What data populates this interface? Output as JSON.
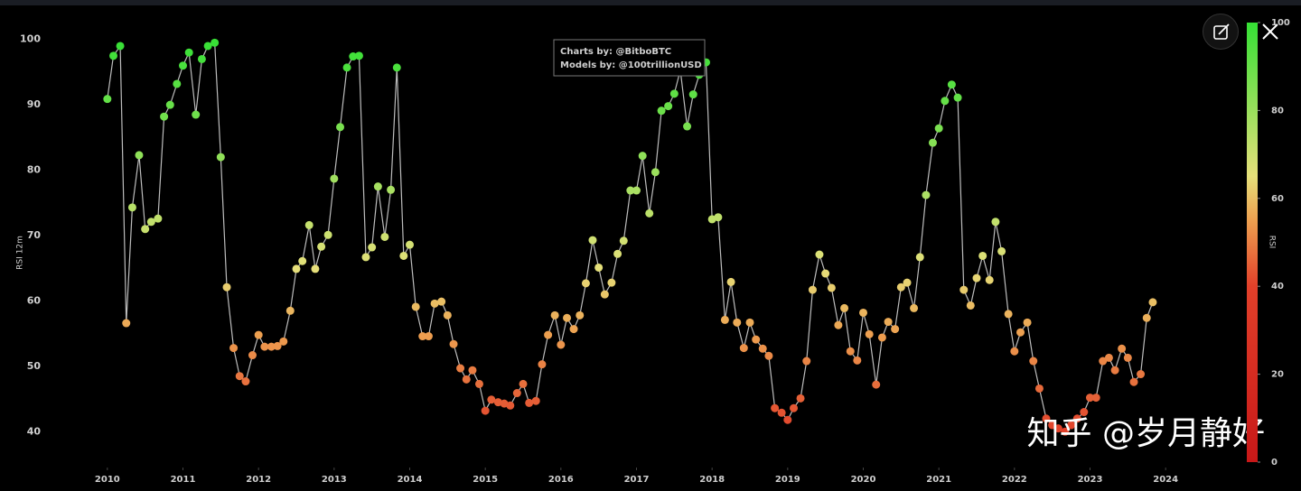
{
  "chart_data": {
    "type": "line",
    "y_label": "RSI 12m",
    "annotation": [
      "Charts by: @BitboBTC",
      "Models by: @100trillionUSD"
    ],
    "line_color": "#bdbdbd",
    "x": [
      2010,
      2010.08,
      2010.17,
      2010.25,
      2010.33,
      2010.42,
      2010.5,
      2010.58,
      2010.67,
      2010.75,
      2010.83,
      2010.92,
      2011,
      2011.08,
      2011.17,
      2011.25,
      2011.33,
      2011.42,
      2011.5,
      2011.58,
      2011.67,
      2011.75,
      2011.83,
      2011.92,
      2012,
      2012.08,
      2012.17,
      2012.25,
      2012.33,
      2012.42,
      2012.5,
      2012.58,
      2012.67,
      2012.75,
      2012.83,
      2012.92,
      2013,
      2013.08,
      2013.17,
      2013.25,
      2013.33,
      2013.42,
      2013.5,
      2013.58,
      2013.67,
      2013.75,
      2013.83,
      2013.92,
      2014,
      2014.08,
      2014.17,
      2014.25,
      2014.33,
      2014.42,
      2014.5,
      2014.58,
      2014.67,
      2014.75,
      2014.83,
      2014.92,
      2015,
      2015.08,
      2015.17,
      2015.25,
      2015.33,
      2015.42,
      2015.5,
      2015.58,
      2015.67,
      2015.75,
      2015.83,
      2015.92,
      2016,
      2016.08,
      2016.17,
      2016.25,
      2016.33,
      2016.42,
      2016.5,
      2016.58,
      2016.67,
      2016.75,
      2016.83,
      2016.92,
      2017,
      2017.08,
      2017.17,
      2017.25,
      2017.33,
      2017.42,
      2017.5,
      2017.58,
      2017.67,
      2017.75,
      2017.83,
      2017.92,
      2018,
      2018.08,
      2018.17,
      2018.25,
      2018.33,
      2018.42,
      2018.5,
      2018.58,
      2018.67,
      2018.75,
      2018.83,
      2018.92,
      2019,
      2019.08,
      2019.17,
      2019.25,
      2019.33,
      2019.42,
      2019.5,
      2019.58,
      2019.67,
      2019.75,
      2019.83,
      2019.92,
      2020,
      2020.08,
      2020.17,
      2020.25,
      2020.33,
      2020.42,
      2020.5,
      2020.58,
      2020.67,
      2020.75,
      2020.83,
      2020.92,
      2021,
      2021.08,
      2021.17,
      2021.25,
      2021.33,
      2021.42,
      2021.5,
      2021.58,
      2021.67,
      2021.75,
      2021.83,
      2021.92,
      2022,
      2022.08,
      2022.17,
      2022.25,
      2022.33,
      2022.42,
      2022.5,
      2022.58,
      2022.67,
      2022.75,
      2022.83,
      2022.92,
      2023,
      2023.08,
      2023.17,
      2023.25,
      2023.33,
      2023.42,
      2023.5,
      2023.58,
      2023.67,
      2023.75,
      2023.83
    ],
    "values": [
      90.9,
      97.5,
      99,
      56.6,
      74.3,
      82.3,
      71,
      72.1,
      72.6,
      88.2,
      90,
      93.2,
      96,
      98,
      88.5,
      97,
      99,
      99.5,
      82,
      62.1,
      52.8,
      48.5,
      47.7,
      51.7,
      54.8,
      53,
      53,
      53.1,
      53.8,
      58.5,
      64.9,
      66.1,
      71.6,
      64.9,
      68.3,
      70.1,
      78.7,
      86.6,
      95.7,
      97.4,
      97.5,
      66.7,
      68.2,
      77.5,
      69.8,
      77,
      95.7,
      66.9,
      68.6,
      59.1,
      54.6,
      54.6,
      59.6,
      59.9,
      57.8,
      53.4,
      49.7,
      48,
      49.4,
      47.3,
      43.2,
      44.9,
      44.5,
      44.3,
      44,
      45.9,
      47.3,
      44.4,
      44.7,
      50.3,
      54.8,
      57.8,
      53.3,
      57.4,
      55.7,
      57.8,
      62.7,
      69.3,
      65.1,
      61,
      62.8,
      67.2,
      69.2,
      76.9,
      76.9,
      82.2,
      73.4,
      79.7,
      89.1,
      89.8,
      91.7,
      95.3,
      86.7,
      91.6,
      94.6,
      96.5,
      72.5,
      72.8,
      57.1,
      62.9,
      56.7,
      52.8,
      56.7,
      54.1,
      52.7,
      51.6,
      43.6,
      42.9,
      41.8,
      43.6,
      45.1,
      50.8,
      61.7,
      67.1,
      64.2,
      62,
      56.3,
      58.9,
      52.3,
      50.9,
      58.2,
      54.9,
      47.2,
      54.4,
      56.8,
      55.7,
      62.1,
      62.8,
      58.9,
      66.7,
      76.2,
      84.2,
      86.4,
      90.6,
      93.1,
      91.1,
      61.7,
      59.3,
      63.5,
      66.9,
      63.2,
      72.1,
      67.6,
      58,
      52.3,
      55.2,
      56.7,
      50.8,
      46.6,
      42,
      41,
      40.5,
      40,
      41,
      42,
      43,
      45.2,
      45.2,
      50.8,
      51.3,
      49.4,
      52.7,
      51.3,
      47.6,
      48.8,
      57.4,
      59.8
    ],
    "xlim": [
      2009.5,
      2024.5
    ],
    "xticks": [
      2010,
      2011,
      2012,
      2013,
      2014,
      2015,
      2016,
      2017,
      2018,
      2019,
      2020,
      2021,
      2022,
      2023,
      2024
    ],
    "ylim": [
      37,
      103
    ],
    "yticks": [
      40,
      50,
      60,
      70,
      80,
      90,
      100
    ],
    "colorbar_label": "RSI",
    "clim": [
      0,
      100
    ],
    "cticks": [
      0,
      20,
      40,
      60,
      80,
      100
    ],
    "colorscale": [
      [
        0,
        "#c81818"
      ],
      [
        40,
        "#e2402a"
      ],
      [
        55,
        "#eda050"
      ],
      [
        65,
        "#e6e07a"
      ],
      [
        100,
        "#35e035"
      ]
    ]
  },
  "watermark": "知乎 @岁月静好"
}
